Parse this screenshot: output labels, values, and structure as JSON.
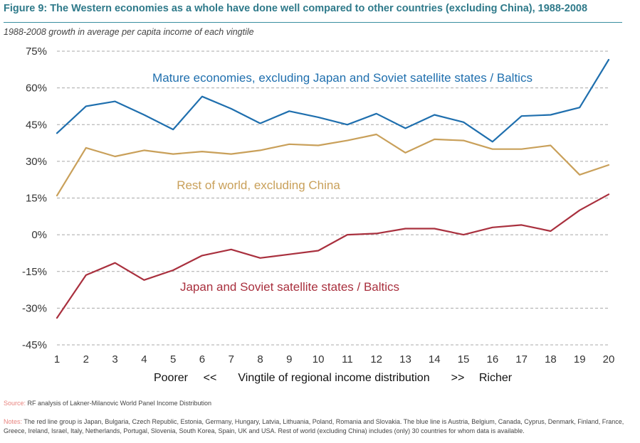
{
  "header": {
    "title": "Figure 9:  The Western economies as a whole have done well compared to other countries (excluding China), 1988-2008",
    "subtitle": "1988-2008 growth in average per capita income of each vingtile"
  },
  "chart_data": {
    "type": "line",
    "x": [
      1,
      2,
      3,
      4,
      5,
      6,
      7,
      8,
      9,
      10,
      11,
      12,
      13,
      14,
      15,
      16,
      17,
      18,
      19,
      20
    ],
    "x_tick_labels": [
      "1",
      "2",
      "3",
      "4",
      "5",
      "6",
      "7",
      "8",
      "9",
      "10",
      "11",
      "12",
      "13",
      "14",
      "15",
      "16",
      "17",
      "18",
      "19",
      "20"
    ],
    "y_ticks": [
      75,
      60,
      45,
      30,
      15,
      0,
      -15,
      -30,
      -45
    ],
    "y_tick_labels": [
      "75%",
      "60%",
      "45%",
      "30%",
      "15%",
      "0%",
      "-15%",
      "-30%",
      "-45%"
    ],
    "ylim": [
      -45,
      75
    ],
    "grid": "horizontal dashed",
    "xlabel": {
      "left": "Poorer",
      "left_arrow": "<<",
      "center": "Vingtile of regional income distribution",
      "right_arrow": ">>",
      "right": "Richer"
    },
    "series": [
      {
        "name": "Mature economies, excluding Japan and Soviet satellite states / Baltics",
        "color": "#1f6fae",
        "values": [
          41.5,
          52.5,
          54.5,
          49,
          43,
          56.5,
          51.5,
          45.5,
          50.5,
          48,
          45,
          49.5,
          43.5,
          49,
          46,
          38,
          48.5,
          49,
          52,
          71.5
        ]
      },
      {
        "name": "Rest of world, excluding China",
        "color": "#c9a05a",
        "values": [
          16,
          35.5,
          32,
          34.5,
          33,
          34,
          33,
          34.5,
          37,
          36.5,
          38.5,
          41,
          33.5,
          39,
          38.5,
          35,
          35,
          36.5,
          24.5,
          28.5
        ]
      },
      {
        "name": "Japan and Soviet satellite states / Baltics",
        "color": "#a9303e",
        "values": [
          -34,
          -16.5,
          -11.5,
          -18.5,
          -14.5,
          -8.5,
          -6,
          -9.5,
          -8,
          -6.5,
          0,
          0.5,
          2.5,
          2.5,
          0,
          3,
          4,
          1.5,
          10,
          16.5
        ]
      }
    ]
  },
  "footer": {
    "source_lead": "Source:",
    "source_text": "RF analysis of Lakner-Milanovic World Panel Income Distribution",
    "notes_lead": "Notes:",
    "notes_text": "The red line group is Japan, Bulgaria, Czech Republic, Estonia, Germany, Hungary, Latvia, Lithuania, Poland, Romania and Slovakia. The blue line is Austria, Belgium, Canada, Cyprus, Denmark, Finland, France, Greece, Ireland, Israel, Italy, Netherlands, Portugal, Slovenia, South Korea, Spain, UK and USA. Rest of world (excluding China) includes (only) 30 countries for whom data is available."
  }
}
